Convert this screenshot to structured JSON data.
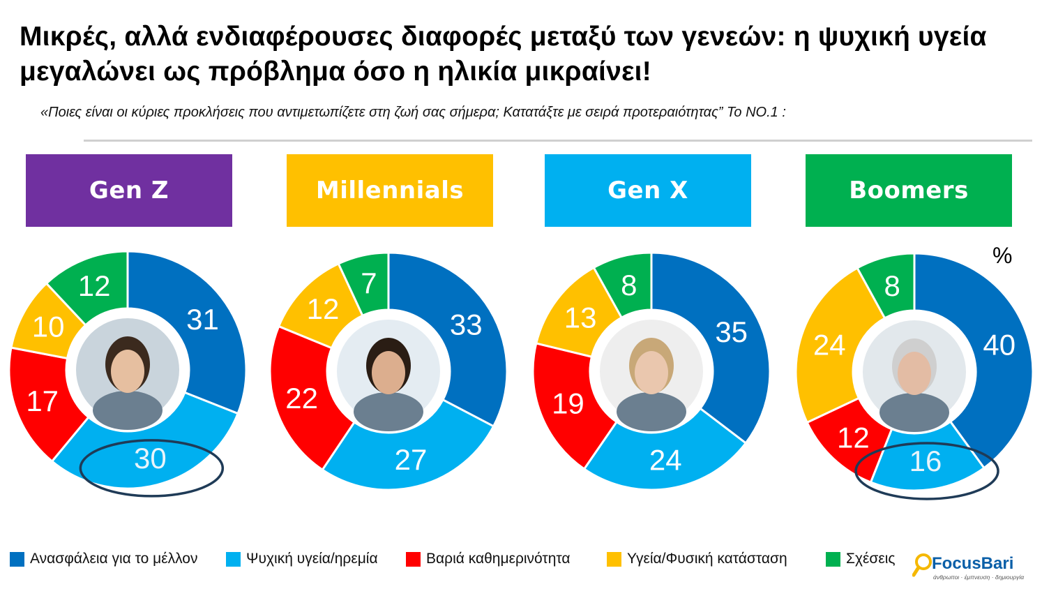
{
  "title": "Μικρές, αλλά ενδιαφέρουσες διαφορές μεταξύ των γενεών: η ψυχική υγεία μεγαλώνει ως πρόβλημα όσο η ηλικία μικραίνει!",
  "subtitle": "«Ποιες είναι οι κύριες προκλήσεις που αντιμετωπίζετε στη ζωή σας σήμερα; Κατατάξτε με σειρά προτεραιότητας” Το ΝΟ.1 :",
  "unit_label": "%",
  "generations": [
    {
      "label": "Gen Z",
      "color": "#7030a0"
    },
    {
      "label": "Millennials",
      "color": "#ffc000"
    },
    {
      "label": "Gen X",
      "color": "#00b0f0"
    },
    {
      "label": "Boomers",
      "color": "#00b050"
    }
  ],
  "legend": [
    {
      "label": "Ανασφάλεια για το μέλλον",
      "color": "#0070c0"
    },
    {
      "label": "Ψυχική υγεία/ηρεμία",
      "color": "#00b0f0"
    },
    {
      "label": "Βαριά καθημερινότητα",
      "color": "#ff0000"
    },
    {
      "label": "Υγεία/Φυσική κατάσταση",
      "color": "#ffc000"
    },
    {
      "label": "Σχέσεις",
      "color": "#00b050"
    }
  ],
  "logo": {
    "name": "FocusBari",
    "tagline": "άνθρωποι · έμπνευση · δημιουργία"
  },
  "chart_data": [
    {
      "type": "pie",
      "name": "Gen Z",
      "categories": [
        "Ανασφάλεια για το μέλλον",
        "Ψυχική υγεία/ηρεμία",
        "Βαριά καθημερινότητα",
        "Υγεία/Φυσική κατάσταση",
        "Σχέσεις"
      ],
      "values": [
        31,
        30,
        17,
        10,
        12
      ],
      "highlighted": "Ψυχική υγεία/ηρεμία"
    },
    {
      "type": "pie",
      "name": "Millennials",
      "categories": [
        "Ανασφάλεια για το μέλλον",
        "Ψυχική υγεία/ηρεμία",
        "Βαριά καθημερινότητα",
        "Υγεία/Φυσική κατάσταση",
        "Σχέσεις"
      ],
      "values": [
        33,
        27,
        22,
        12,
        7
      ]
    },
    {
      "type": "pie",
      "name": "Gen X",
      "categories": [
        "Ανασφάλεια για το μέλλον",
        "Ψυχική υγεία/ηρεμία",
        "Βαριά καθημερινότητα",
        "Υγεία/Φυσική κατάσταση",
        "Σχέσεις"
      ],
      "values": [
        35,
        24,
        19,
        13,
        8
      ]
    },
    {
      "type": "pie",
      "name": "Boomers",
      "categories": [
        "Ανασφάλεια για το μέλλον",
        "Ψυχική υγεία/ηρεμία",
        "Βαριά καθημερινότητα",
        "Υγεία/Φυσική κατάσταση",
        "Σχέσεις"
      ],
      "values": [
        40,
        16,
        12,
        24,
        8
      ],
      "highlighted": "Ψυχική υγεία/ηρεμία"
    }
  ]
}
